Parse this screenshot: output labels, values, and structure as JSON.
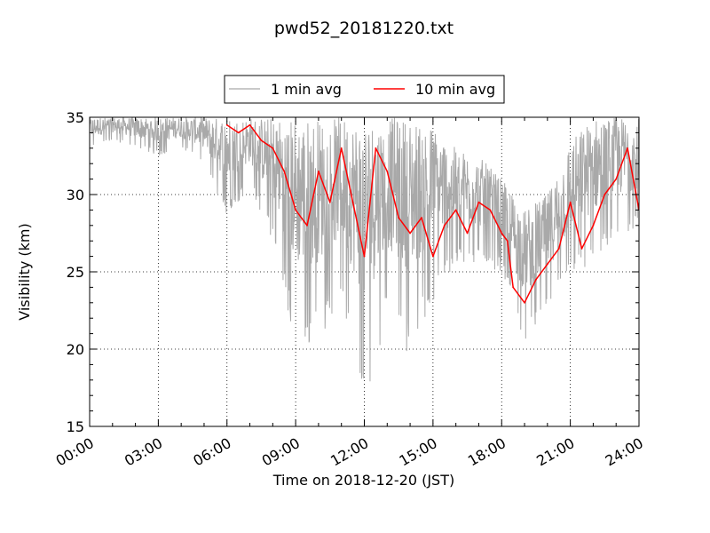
{
  "chart_data": {
    "type": "line",
    "title": "pwd52_20181220.txt",
    "xlabel": "Time on 2018-12-20 (JST)",
    "ylabel": "Visibility (km)",
    "xlim": [
      "00:00",
      "24:00"
    ],
    "ylim": [
      15,
      35
    ],
    "x_ticks": [
      "00:00",
      "03:00",
      "06:00",
      "09:00",
      "12:00",
      "15:00",
      "18:00",
      "21:00",
      "24:00"
    ],
    "y_ticks": [
      15,
      20,
      25,
      30,
      35
    ],
    "grid": true,
    "legend_position": "top-center",
    "series": [
      {
        "name": "1 min avg",
        "color": "#a9a9a9",
        "style": "noisy band",
        "x": [
          "00:00",
          "01:00",
          "02:00",
          "03:00",
          "04:00",
          "05:00",
          "06:00",
          "07:00",
          "08:00",
          "09:00",
          "10:00",
          "11:00",
          "12:00",
          "13:00",
          "14:00",
          "15:00",
          "16:00",
          "17:00",
          "18:00",
          "19:00",
          "20:00",
          "21:00",
          "22:00",
          "23:00",
          "24:00"
        ],
        "y_low": [
          33.0,
          33.5,
          33.0,
          32.5,
          33.0,
          32.0,
          28.5,
          30.5,
          27.0,
          20.0,
          20.5,
          23.0,
          16.5,
          22.0,
          19.5,
          23.0,
          25.5,
          25.5,
          25.0,
          20.5,
          22.5,
          24.5,
          25.5,
          27.0,
          28.0
        ],
        "y_high": [
          35.0,
          35.0,
          35.0,
          35.0,
          35.0,
          35.0,
          35.0,
          35.0,
          35.0,
          35.0,
          35.0,
          35.0,
          35.0,
          35.0,
          35.0,
          34.5,
          33.0,
          32.5,
          31.0,
          29.0,
          30.0,
          33.5,
          35.0,
          35.0,
          35.0
        ]
      },
      {
        "name": "10 min avg",
        "color": "#ff0000",
        "x": [
          "06:00",
          "06:30",
          "07:00",
          "07:30",
          "08:00",
          "08:30",
          "09:00",
          "09:30",
          "10:00",
          "10:30",
          "11:00",
          "11:30",
          "12:00",
          "12:30",
          "13:00",
          "13:30",
          "14:00",
          "14:30",
          "15:00",
          "15:30",
          "16:00",
          "16:30",
          "17:00",
          "17:30",
          "18:00",
          "18:15",
          "18:30",
          "19:00",
          "19:30",
          "20:00",
          "20:30",
          "21:00",
          "21:30",
          "22:00",
          "22:30",
          "23:00",
          "23:30",
          "24:00"
        ],
        "y": [
          34.5,
          34.0,
          34.5,
          33.5,
          33.0,
          31.5,
          29.0,
          28.0,
          31.5,
          29.5,
          33.0,
          29.5,
          26.0,
          33.0,
          31.5,
          28.5,
          27.5,
          28.5,
          26.0,
          28.0,
          29.0,
          27.5,
          29.5,
          29.0,
          27.5,
          27.0,
          24.0,
          23.0,
          24.5,
          25.5,
          26.5,
          29.5,
          26.5,
          28.0,
          30.0,
          31.0,
          33.0,
          29.0
        ]
      }
    ]
  }
}
